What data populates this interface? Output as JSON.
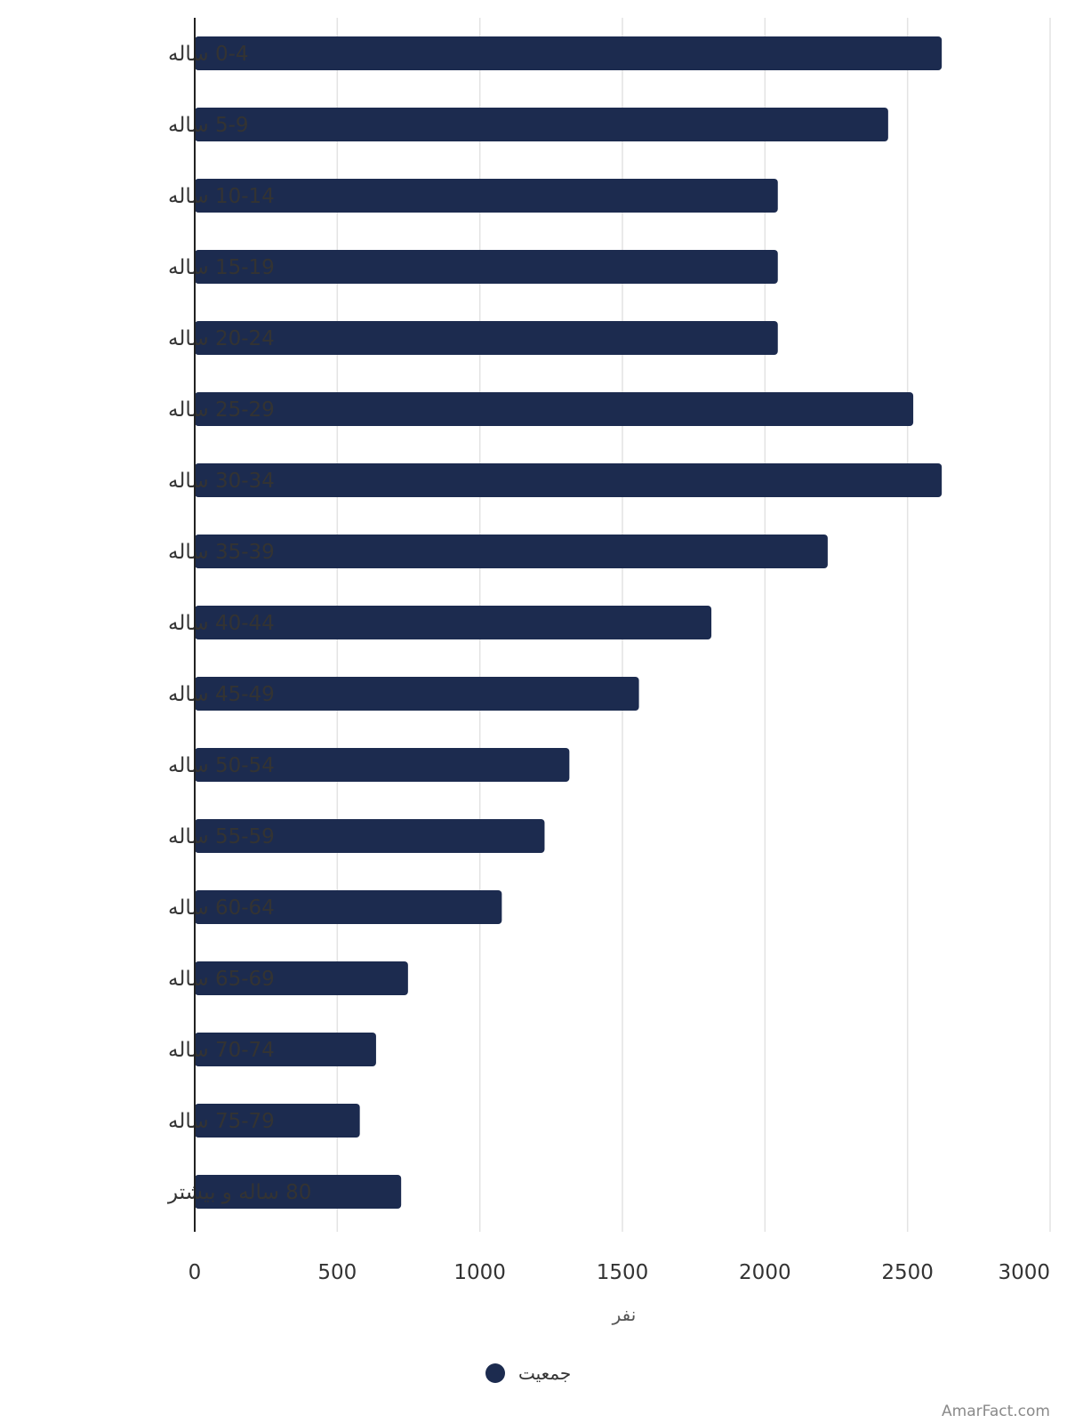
{
  "chart_data": {
    "type": "bar",
    "orientation": "horizontal",
    "categories": [
      "0-4 ساله",
      "5-9 ساله",
      "10-14 ساله",
      "15-19 ساله",
      "20-24 ساله",
      "25-29 ساله",
      "30-34 ساله",
      "35-39 ساله",
      "40-44 ساله",
      "45-49 ساله",
      "50-54 ساله",
      "55-59 ساله",
      "60-64 ساله",
      "65-69 ساله",
      "70-74 ساله",
      "75-79 ساله",
      "80 ساله و بیشتر"
    ],
    "series": [
      {
        "name": "جمعیت",
        "color": "#1c2b4f",
        "values": [
          2620,
          2432,
          2045,
          2045,
          2045,
          2520,
          2620,
          2220,
          1812,
          1558,
          1314,
          1227,
          1077,
          748,
          636,
          579,
          724
        ]
      }
    ],
    "xlabel": "نفر",
    "ylabel": "",
    "xlim": [
      0,
      3000
    ],
    "xticks": [
      "0",
      "500",
      "1000",
      "1500",
      "2000",
      "2500",
      "3000"
    ],
    "grid": true,
    "legend_position": "bottom-center"
  },
  "watermark": "AmarFact.com",
  "colors": {
    "bar": "#1c2b4f",
    "grid": "#e3e3e3",
    "axis": "#222222"
  }
}
